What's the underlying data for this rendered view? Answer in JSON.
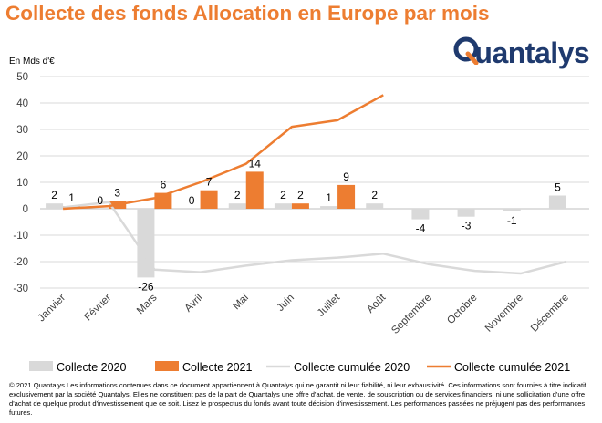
{
  "header": {
    "title": "Collecte des fonds Allocation en Europe par mois",
    "logo_text": "Quantalys",
    "brand_color": "#ED7D31",
    "logo_color": "#1F3A6E"
  },
  "chart_data": {
    "type": "bar",
    "title": "Collecte des fonds Allocation en Europe par mois",
    "ylabel": "En Mds d'€",
    "xlabel": "",
    "ylim": [
      -30,
      50
    ],
    "yticks": [
      50,
      40,
      30,
      20,
      10,
      0,
      -10,
      -20,
      -30
    ],
    "grid": true,
    "legend_position": "bottom",
    "categories": [
      "Janvier",
      "Février",
      "Mars",
      "Avril",
      "Mai",
      "Juin",
      "Juillet",
      "Août",
      "Septembre",
      "Octobre",
      "Novembre",
      "Décembre"
    ],
    "series": [
      {
        "name": "Collecte 2020",
        "kind": "bar",
        "color": "#D9D9D9",
        "values": [
          2,
          0,
          -26,
          0,
          2,
          2,
          1,
          2,
          -4,
          -3,
          -1,
          5
        ],
        "labels": [
          "2",
          "0",
          "-26",
          "0",
          "2",
          "2",
          "1",
          "2",
          "-4",
          "-3",
          "-1",
          "5"
        ]
      },
      {
        "name": "Collecte 2021",
        "kind": "bar",
        "color": "#ED7D31",
        "values": [
          1,
          3,
          6,
          7,
          14,
          2,
          9,
          null,
          null,
          null,
          null,
          null
        ],
        "labels": [
          "1",
          "3",
          "6",
          "7",
          "14",
          "2",
          "9",
          "",
          "",
          "",
          "",
          ""
        ]
      },
      {
        "name": "Collecte cumulée 2020",
        "kind": "line",
        "color": "#D9D9D9",
        "values": [
          0.5,
          2.5,
          -23,
          -24,
          -21.5,
          -19.5,
          -18.5,
          -17,
          -21,
          -23.5,
          -24.5,
          -20
        ]
      },
      {
        "name": "Collecte cumulée 2021",
        "kind": "line",
        "color": "#ED7D31",
        "values": [
          0,
          1,
          4,
          10,
          17,
          31,
          33.5,
          43,
          null,
          null,
          null,
          null
        ]
      }
    ]
  },
  "footnote": "© 2021 Quantalys Les informations contenues dans ce document appartiennent à Quantalys qui ne garantit ni leur fiabilité, ni leur exhaustivité. Ces informations sont fournies à titre indicatif exclusivement par la société Quantalys. Elles ne constituent pas de la part de Quantalys une offre d'achat, de vente, de souscription ou de services financiers, ni une sollicitation d'une offre d'achat de quelque produit d'investissement que ce soit. Lisez le prospectus du fonds avant toute décision d'investissement. Les performances passées ne préjugent pas des performances futures."
}
